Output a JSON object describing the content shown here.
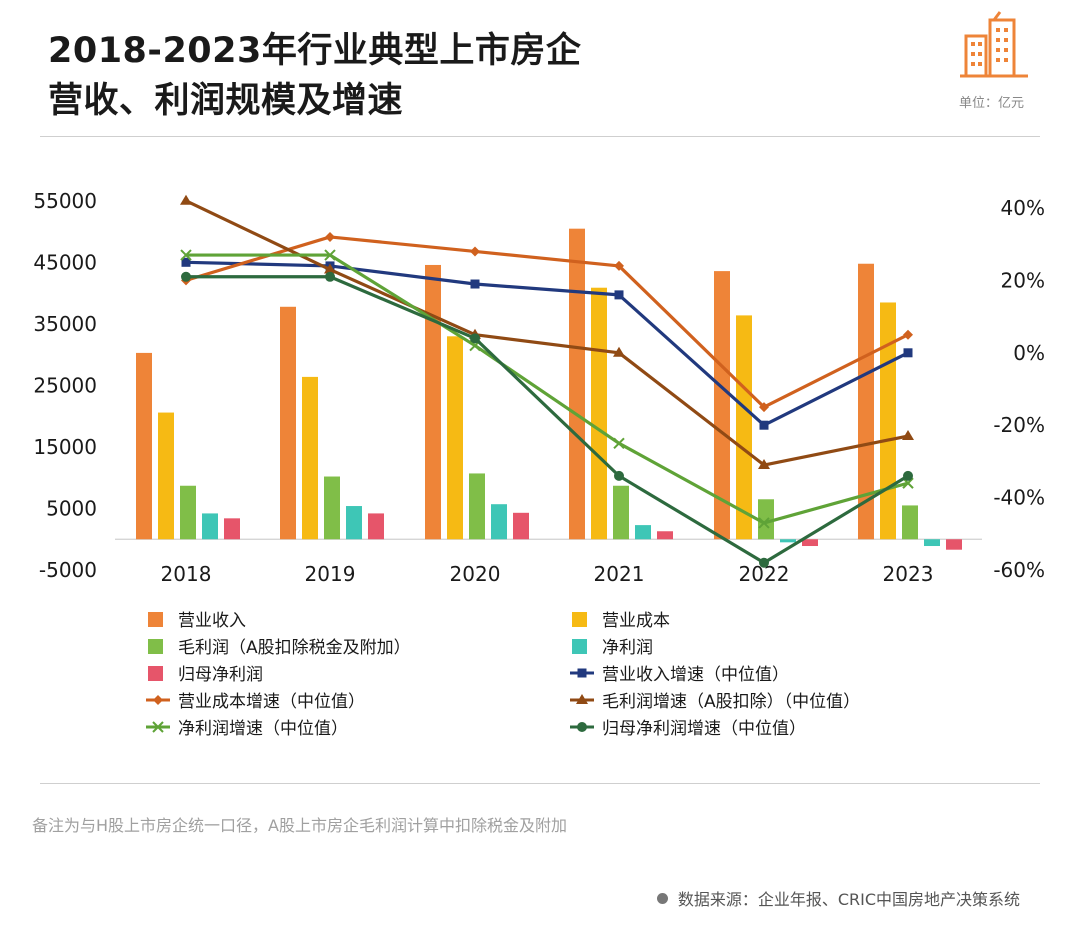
{
  "title": {
    "line1": "2018-2023年行业典型上市房企",
    "line2": "营收、利润规模及增速"
  },
  "unit_label": "单位：亿元",
  "note": "备注为与H股上市房企统一口径，A股上市房企毛利润计算中扣除税金及附加",
  "source": "数据来源：企业年报、CRIC中国房地产决策系统",
  "chart_data": {
    "type": "bar",
    "categories": [
      "2018",
      "2019",
      "2020",
      "2021",
      "2022",
      "2023"
    ],
    "y_left": {
      "ticks": [
        55000,
        45000,
        35000,
        25000,
        15000,
        5000,
        -5000
      ],
      "range": [
        -5000,
        55000
      ]
    },
    "y_right": {
      "ticks": [
        "40%",
        "20%",
        "0%",
        "-20%",
        "-40%",
        "-60%"
      ],
      "range": [
        -60,
        40
      ]
    },
    "bar_series": [
      {
        "name": "营业收入",
        "color": "#EE8438",
        "values": [
          30300,
          37800,
          44600,
          50500,
          43600,
          44800
        ]
      },
      {
        "name": "营业成本",
        "color": "#F6BA14",
        "values": [
          20600,
          26400,
          33000,
          40900,
          36400,
          38500
        ]
      },
      {
        "name": "毛利润（A股扣除税金及附加）",
        "color": "#80BE48",
        "values": [
          8700,
          10200,
          10700,
          8700,
          6500,
          5500
        ]
      },
      {
        "name": "净利润",
        "color": "#3EC6B6",
        "values": [
          4200,
          5400,
          5700,
          2300,
          -500,
          -1100
        ]
      },
      {
        "name": "归母净利润",
        "color": "#E6556A",
        "values": [
          3400,
          4200,
          4300,
          1300,
          -1100,
          -1700
        ]
      }
    ],
    "line_series": [
      {
        "name": "营业收入增速（中位值）",
        "color": "#21397E",
        "marker": "square",
        "values": [
          25,
          24,
          19,
          16,
          -20,
          0
        ]
      },
      {
        "name": "营业成本增速（中位值）",
        "color": "#D0611E",
        "marker": "diamond",
        "values": [
          20,
          32,
          28,
          24,
          -15,
          5
        ]
      },
      {
        "name": "毛利润增速（A股扣除）（中位值）",
        "color": "#904A14",
        "marker": "triangle",
        "values": [
          42,
          23,
          5,
          0,
          -31,
          -23
        ]
      },
      {
        "name": "净利润增速（中位值）",
        "color": "#5FA337",
        "marker": "x",
        "values": [
          27,
          27,
          2,
          -25,
          -47,
          -36
        ]
      },
      {
        "name": "归母净利润增速（中位值）",
        "color": "#2D6A3E",
        "marker": "circle",
        "values": [
          21,
          21,
          4,
          -34,
          -58,
          -34
        ]
      }
    ]
  }
}
